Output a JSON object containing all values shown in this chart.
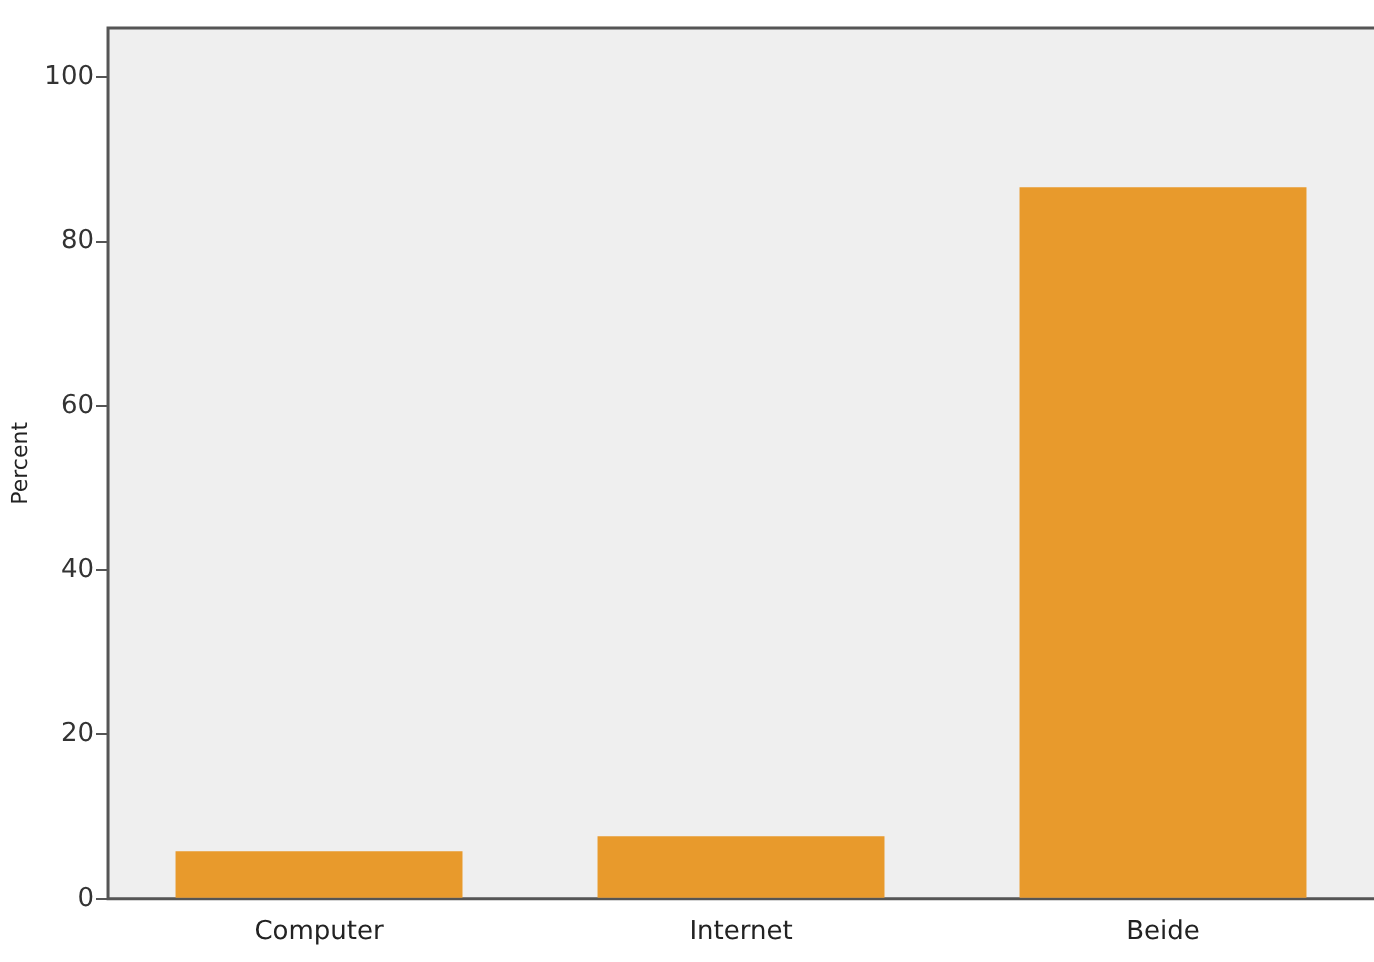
{
  "chart_data": {
    "type": "bar",
    "ylabel": "Percent",
    "categories": [
      "Computer",
      "Internet",
      "Beide"
    ],
    "values": [
      5.8,
      7.6,
      86.6
    ],
    "color": "#e89a2c",
    "ylim": [
      0,
      106
    ],
    "yticks": [
      0,
      20,
      40,
      60,
      80,
      100
    ],
    "grid": false,
    "legend": false
  }
}
